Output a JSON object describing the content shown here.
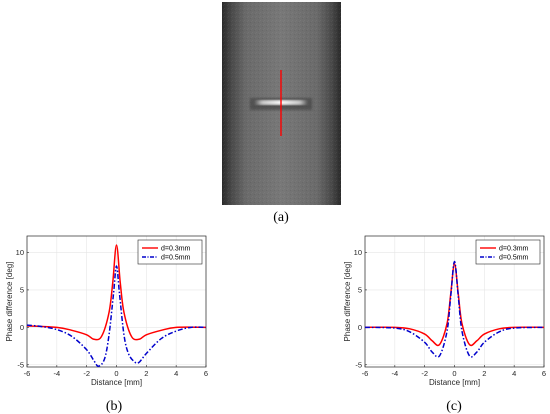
{
  "panels": {
    "a": {
      "label": "(a)"
    },
    "b": {
      "label": "(b)"
    },
    "c": {
      "label": "(c)"
    }
  },
  "image_panel": {
    "marker_color": "#ff0000"
  },
  "colors": {
    "series_solid": "#ff0000",
    "series_dashdot": "#0000cc",
    "grid": "#e6e6e6",
    "image_bg": "#6e6e6e"
  },
  "chart_data": [
    {
      "panel": "b",
      "type": "line",
      "xlabel": "Distance [mm]",
      "ylabel": "Phase difference [deg]",
      "xlim": [
        -6,
        6
      ],
      "ylim": [
        -5.3,
        12.2
      ],
      "xticks": [
        -6,
        -4,
        -2,
        0,
        2,
        4,
        6
      ],
      "yticks": [
        -5,
        0,
        5,
        10
      ],
      "grid": true,
      "legend_position": "top-right",
      "series": [
        {
          "name": "d=0.3mm",
          "style": "solid",
          "x": [
            -6,
            -4,
            -3,
            -2,
            -1.5,
            -1,
            -0.5,
            -0.25,
            0,
            0.25,
            0.5,
            1,
            1.5,
            2,
            3,
            4,
            6
          ],
          "y": [
            0.2,
            0.0,
            -0.4,
            -1.0,
            -1.6,
            -1.2,
            2.0,
            6.0,
            11.0,
            6.0,
            2.0,
            -1.2,
            -1.6,
            -1.0,
            -0.4,
            0.0,
            0.0
          ]
        },
        {
          "name": "d=0.5mm",
          "style": "dashdot",
          "x": [
            -6,
            -5,
            -4,
            -3,
            -2,
            -1.5,
            -1.2,
            -0.8,
            -0.5,
            -0.2,
            0,
            0.2,
            0.5,
            0.8,
            1.2,
            1.5,
            2,
            3,
            4,
            5,
            6
          ],
          "y": [
            0.3,
            0.1,
            -0.3,
            -1.2,
            -3.0,
            -4.5,
            -5.2,
            -4.2,
            -1.0,
            4.5,
            8.2,
            4.5,
            -1.0,
            -3.5,
            -4.6,
            -4.7,
            -3.5,
            -1.5,
            -0.5,
            0.0,
            0.0
          ]
        }
      ]
    },
    {
      "panel": "c",
      "type": "line",
      "xlabel": "Distance [mm]",
      "ylabel": "Phase difference [deg]",
      "xlim": [
        -6,
        6
      ],
      "ylim": [
        -5.3,
        12.2
      ],
      "xticks": [
        -6,
        -4,
        -2,
        0,
        2,
        4,
        6
      ],
      "yticks": [
        -5,
        0,
        5,
        10
      ],
      "grid": true,
      "legend_position": "top-right",
      "series": [
        {
          "name": "d=0.3mm",
          "style": "solid",
          "x": [
            -6,
            -4,
            -3,
            -2,
            -1.5,
            -1,
            -0.5,
            -0.25,
            0,
            0.25,
            0.5,
            1,
            1.5,
            2,
            3,
            4,
            6
          ],
          "y": [
            0.0,
            0.0,
            -0.2,
            -0.9,
            -1.8,
            -2.3,
            0.5,
            4.5,
            8.5,
            4.5,
            0.5,
            -2.3,
            -1.8,
            -0.9,
            -0.2,
            0.0,
            0.0
          ]
        },
        {
          "name": "d=0.5mm",
          "style": "dashdot",
          "x": [
            -6,
            -4,
            -3,
            -2,
            -1.5,
            -1,
            -0.5,
            -0.25,
            0,
            0.25,
            0.5,
            1,
            1.5,
            2,
            3,
            4,
            6
          ],
          "y": [
            0.0,
            -0.1,
            -0.6,
            -2.0,
            -3.3,
            -3.8,
            -0.5,
            4.2,
            8.8,
            4.2,
            -0.5,
            -3.8,
            -3.3,
            -2.0,
            -0.6,
            -0.1,
            0.0
          ]
        }
      ]
    }
  ]
}
